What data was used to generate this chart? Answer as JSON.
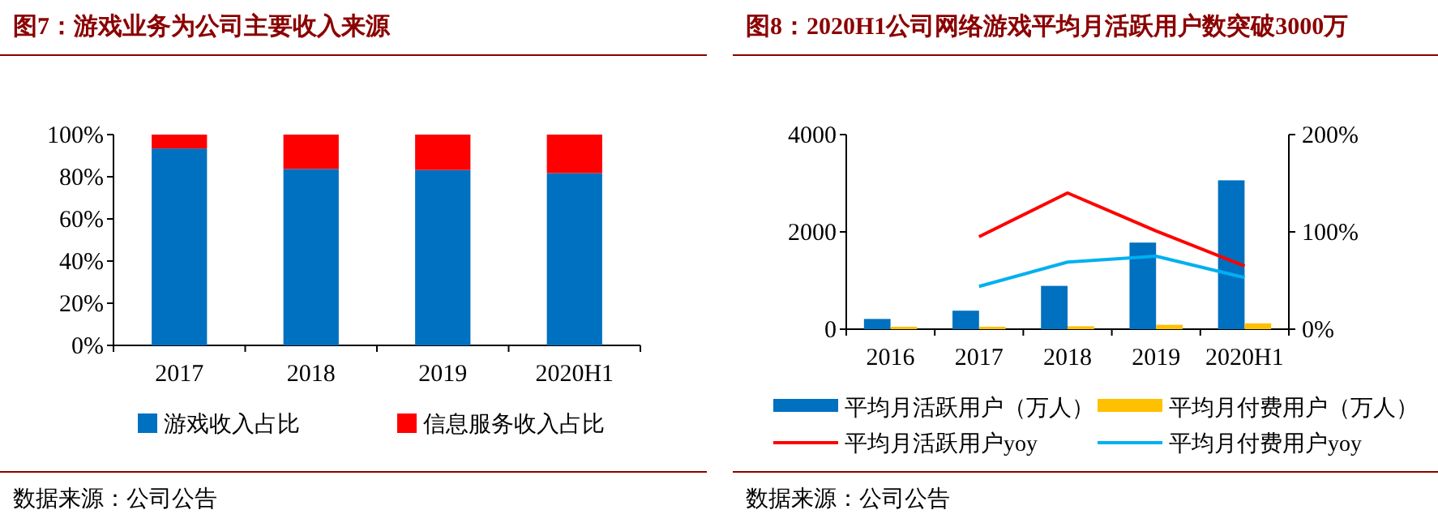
{
  "chart_data": [
    {
      "type": "bar",
      "title": "图7：游戏业务为公司主要收入来源",
      "categories": [
        "2017",
        "2018",
        "2019",
        "2020H1"
      ],
      "stacked": true,
      "series": [
        {
          "name": "游戏收入占比",
          "color": "#0070c0",
          "values": [
            93.4,
            83.7,
            83.2,
            81.7
          ]
        },
        {
          "name": "信息服务收入占比",
          "color": "#ff0000",
          "values": [
            6.6,
            16.3,
            16.8,
            18.3
          ]
        }
      ],
      "ylim": [
        0,
        100
      ],
      "yticks": [
        {
          "value": 0,
          "label": "0%"
        },
        {
          "value": 20,
          "label": "20%"
        },
        {
          "value": 40,
          "label": "40%"
        },
        {
          "value": 60,
          "label": "60%"
        },
        {
          "value": 80,
          "label": "80%"
        },
        {
          "value": 100,
          "label": "100%"
        }
      ],
      "legend": "bottom",
      "annotations": [
        "数据来源：公司公告"
      ]
    },
    {
      "type": "bar",
      "title": "图8：2020H1公司网络游戏平均月活跃用户数突破3000万",
      "categories": [
        "2016",
        "2017",
        "2018",
        "2019",
        "2020H1"
      ],
      "series": [
        {
          "name": "平均月活跃用户（万人）",
          "color": "#0070c0",
          "values": [
            210,
            380,
            890,
            1780,
            3060
          ]
        },
        {
          "name": "平均月付费用户（万人）",
          "color": "#ffc000",
          "values": [
            50,
            50,
            60,
            90,
            120
          ]
        },
        {
          "name": "平均月活跃用户yoy",
          "type": "line",
          "axis": "y2",
          "color": "#ff0000",
          "values": [
            null,
            95,
            140,
            101,
            65
          ]
        },
        {
          "name": "平均月付费用户yoy",
          "type": "line",
          "axis": "y2",
          "color": "#00b0f0",
          "values": [
            null,
            44,
            69,
            75,
            53
          ]
        }
      ],
      "ylim": [
        0,
        4000
      ],
      "yticks": [
        0,
        2000,
        4000
      ],
      "y2lim": [
        0,
        200
      ],
      "y2ticks": [
        {
          "value": 0,
          "label": "0%"
        },
        {
          "value": 100,
          "label": "100%"
        },
        {
          "value": 200,
          "label": "200%"
        }
      ],
      "legend": "bottom",
      "annotations": [
        "数据来源：公司公告"
      ]
    }
  ]
}
